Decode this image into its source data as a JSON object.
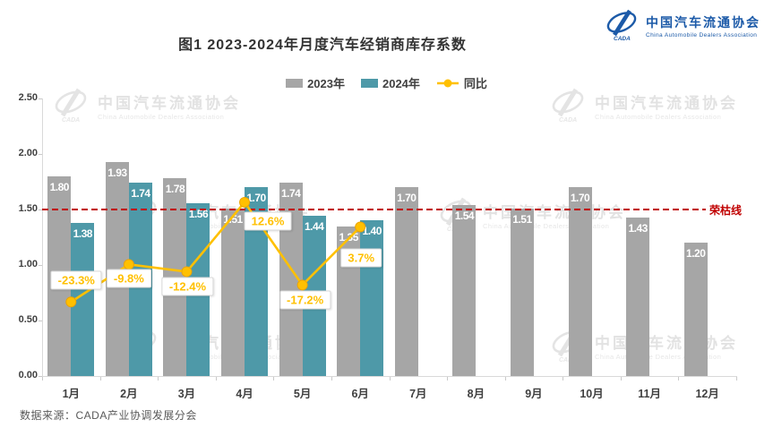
{
  "title": "图1  2023-2024年月度汽车经销商库存系数",
  "logo": {
    "org_cn": "中国汽车流通协会",
    "org_en": "China Automobile Dealers Association",
    "abbr": "CADA",
    "color": "#1C5AA8"
  },
  "watermark": {
    "org_cn": "中国汽车流通协会",
    "org_en": "China Automobile Dealers Association",
    "abbr": "CADA"
  },
  "legend": [
    {
      "label": "2023年",
      "color": "#A6A6A6",
      "type": "square"
    },
    {
      "label": "2024年",
      "color": "#4E99A8",
      "type": "square"
    },
    {
      "label": "同比",
      "color": "#FFC000",
      "type": "line"
    }
  ],
  "chart_data": {
    "type": "bar",
    "categories": [
      "1月",
      "2月",
      "3月",
      "4月",
      "5月",
      "6月",
      "7月",
      "8月",
      "9月",
      "10月",
      "11月",
      "12月"
    ],
    "series": [
      {
        "name": "2023年",
        "type": "bar",
        "color": "#A6A6A6",
        "values": [
          1.8,
          1.93,
          1.78,
          1.51,
          1.74,
          1.35,
          1.7,
          1.54,
          1.51,
          1.7,
          1.43,
          1.2
        ]
      },
      {
        "name": "2024年",
        "type": "bar",
        "color": "#4E99A8",
        "values": [
          1.38,
          1.74,
          1.56,
          1.7,
          1.44,
          1.4,
          null,
          null,
          null,
          null,
          null,
          null
        ]
      },
      {
        "name": "同比",
        "type": "line",
        "color": "#FFC000",
        "axis": "secondary",
        "values": [
          -23.3,
          -9.8,
          -12.4,
          12.6,
          -17.2,
          3.7
        ],
        "labels": [
          "-23.3%",
          "-9.8%",
          "-12.4%",
          "12.6%",
          "-17.2%",
          "3.7%"
        ]
      }
    ],
    "y_axis": {
      "min": 0,
      "max": 2.5,
      "step": 0.5,
      "ticks": [
        "0.00",
        "0.50",
        "1.00",
        "1.50",
        "2.00",
        "2.50"
      ]
    },
    "secondary_axis": {
      "min": -50,
      "max": 50,
      "visible": false
    },
    "reference_line": {
      "value": 1.5,
      "label": "荣枯线",
      "color": "#C00000"
    },
    "grid": false,
    "legend_position": "top"
  },
  "colors": {
    "bar_2023": "#A6A6A6",
    "bar_2024": "#4E99A8",
    "yoy_line": "#FFC000",
    "reference": "#C00000",
    "axis": "#D9D9D9",
    "text": "#404040"
  },
  "source": "数据来源：CADA产业协调发展分会"
}
